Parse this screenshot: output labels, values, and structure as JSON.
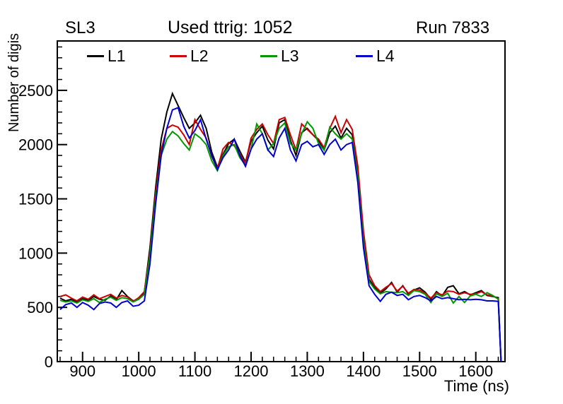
{
  "chart_data": {
    "type": "line",
    "left_label": "SL3",
    "title": "Used ttrig: 1052",
    "right_label": "Run 7833",
    "xlabel": "Time (ns)",
    "ylabel": "Number of digis",
    "xlim": [
      855,
      1652
    ],
    "ylim": [
      0,
      2955
    ],
    "xticks": [
      900,
      1000,
      1100,
      1200,
      1300,
      1400,
      1500,
      1600
    ],
    "yticks": [
      0,
      500,
      1000,
      1500,
      2000,
      2500
    ],
    "x_minor_step": 20,
    "y_minor_step": 100,
    "grid": false,
    "legend_position": "top-inside-horizontal",
    "x": [
      860,
      870,
      880,
      890,
      900,
      910,
      920,
      930,
      940,
      950,
      960,
      970,
      980,
      990,
      1000,
      1010,
      1020,
      1030,
      1040,
      1050,
      1060,
      1070,
      1080,
      1090,
      1100,
      1110,
      1120,
      1130,
      1140,
      1150,
      1160,
      1170,
      1180,
      1190,
      1200,
      1210,
      1220,
      1230,
      1240,
      1250,
      1260,
      1270,
      1280,
      1290,
      1300,
      1310,
      1320,
      1330,
      1340,
      1350,
      1360,
      1370,
      1380,
      1390,
      1400,
      1410,
      1420,
      1430,
      1440,
      1450,
      1460,
      1470,
      1480,
      1490,
      1500,
      1510,
      1520,
      1530,
      1540,
      1550,
      1560,
      1570,
      1580,
      1590,
      1600,
      1610,
      1620,
      1630,
      1640,
      1645
    ],
    "series": [
      {
        "name": "L1",
        "color": "#000000",
        "values": [
          585,
          560,
          575,
          550,
          580,
          565,
          600,
          575,
          565,
          605,
          570,
          655,
          600,
          560,
          575,
          640,
          1050,
          1600,
          2050,
          2300,
          2470,
          2360,
          2250,
          2150,
          2200,
          2270,
          2150,
          1930,
          1790,
          1910,
          2010,
          2050,
          1940,
          1840,
          2030,
          2110,
          2170,
          2040,
          1960,
          2200,
          2230,
          2040,
          1900,
          2110,
          2150,
          2090,
          2040,
          1950,
          2110,
          2170,
          2060,
          2150,
          2090,
          1750,
          1150,
          760,
          680,
          630,
          670,
          730,
          640,
          700,
          620,
          660,
          680,
          640,
          575,
          645,
          605,
          685,
          700,
          625,
          645,
          615,
          635,
          655,
          610,
          600,
          590,
          0
        ]
      },
      {
        "name": "L2",
        "color": "#cc0000",
        "values": [
          600,
          615,
          585,
          560,
          595,
          575,
          615,
          580,
          600,
          620,
          585,
          610,
          595,
          555,
          590,
          645,
          1000,
          1550,
          1950,
          2150,
          2180,
          2160,
          2090,
          2000,
          2230,
          2140,
          2060,
          1890,
          1780,
          1960,
          2020,
          1990,
          1910,
          1830,
          2060,
          2140,
          2190,
          2090,
          2010,
          2230,
          2250,
          2090,
          1950,
          2190,
          2140,
          2090,
          2050,
          1970,
          2150,
          2260,
          2110,
          2230,
          2140,
          1800,
          1200,
          800,
          700,
          645,
          685,
          720,
          650,
          695,
          630,
          665,
          660,
          630,
          585,
          635,
          615,
          650,
          645,
          620,
          635,
          620,
          625,
          645,
          615,
          605,
          580,
          0
        ]
      },
      {
        "name": "L3",
        "color": "#009900",
        "values": [
          565,
          550,
          560,
          540,
          570,
          555,
          580,
          545,
          575,
          595,
          565,
          590,
          580,
          550,
          575,
          620,
          980,
          1500,
          1900,
          2050,
          2120,
          2080,
          2010,
          1950,
          2100,
          2060,
          2000,
          1850,
          1760,
          1900,
          1980,
          2000,
          1880,
          1810,
          1960,
          2190,
          2100,
          1950,
          2010,
          2150,
          2200,
          2010,
          1950,
          2100,
          2210,
          2150,
          2010,
          1950,
          2160,
          2100,
          2050,
          2100,
          2050,
          1700,
          1100,
          740,
          670,
          625,
          645,
          640,
          635,
          645,
          610,
          655,
          645,
          620,
          545,
          625,
          600,
          630,
          540,
          600,
          545,
          605,
          620,
          600,
          635,
          610,
          575,
          0
        ]
      },
      {
        "name": "L4",
        "color": "#0000cc",
        "values": [
          480,
          525,
          540,
          500,
          545,
          520,
          480,
          535,
          550,
          540,
          500,
          545,
          560,
          510,
          520,
          560,
          900,
          1450,
          1900,
          2150,
          2320,
          2340,
          2170,
          2060,
          2130,
          2230,
          2050,
          1900,
          1770,
          1880,
          1950,
          2050,
          1900,
          1800,
          1960,
          2050,
          2100,
          1950,
          1890,
          2060,
          2150,
          1950,
          1850,
          2000,
          2030,
          1980,
          2000,
          1910,
          2000,
          2050,
          1950,
          2000,
          2020,
          1650,
          1050,
          700,
          620,
          555,
          620,
          640,
          610,
          620,
          570,
          600,
          610,
          590,
          560,
          600,
          580,
          590,
          580,
          570,
          575,
          570,
          575,
          570,
          560,
          560,
          555,
          0
        ]
      }
    ]
  }
}
